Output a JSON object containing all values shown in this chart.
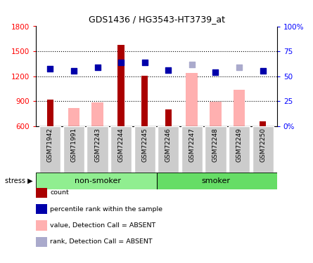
{
  "title": "GDS1436 / HG3543-HT3739_at",
  "samples": [
    "GSM71942",
    "GSM71991",
    "GSM72243",
    "GSM72244",
    "GSM72245",
    "GSM72246",
    "GSM72247",
    "GSM72248",
    "GSM72249",
    "GSM72250"
  ],
  "count_values": [
    920,
    null,
    null,
    1580,
    1210,
    800,
    null,
    null,
    null,
    660
  ],
  "absent_bar_values": [
    null,
    820,
    890,
    null,
    null,
    null,
    1240,
    895,
    1040,
    null
  ],
  "rank_blue_values": [
    1290,
    1265,
    1310,
    1365,
    1365,
    1270,
    null,
    1245,
    null,
    1265
  ],
  "rank_absent_values": [
    null,
    null,
    null,
    null,
    null,
    null,
    1340,
    null,
    1310,
    null
  ],
  "ylim": [
    600,
    1800
  ],
  "yticks": [
    600,
    900,
    1200,
    1500,
    1800
  ],
  "grid_lines": [
    900,
    1200,
    1500
  ],
  "y2_ticks": [
    0,
    25,
    50,
    75,
    100
  ],
  "y2_labels": [
    "0%",
    "25",
    "50",
    "75",
    "100%"
  ],
  "count_color": "#AA0000",
  "absent_bar_color": "#FFB0B0",
  "rank_color": "#0000AA",
  "rank_absent_color": "#AAAACC",
  "nonsmoker_color": "#90EE90",
  "smoker_color": "#66DD66",
  "bg_color": "#FFFFFF",
  "gray_box_color": "#CCCCCC",
  "legend_items": [
    {
      "color": "#AA0000",
      "label": "count"
    },
    {
      "color": "#0000AA",
      "label": "percentile rank within the sample"
    },
    {
      "color": "#FFB0B0",
      "label": "value, Detection Call = ABSENT"
    },
    {
      "color": "#AAAACC",
      "label": "rank, Detection Call = ABSENT"
    }
  ]
}
